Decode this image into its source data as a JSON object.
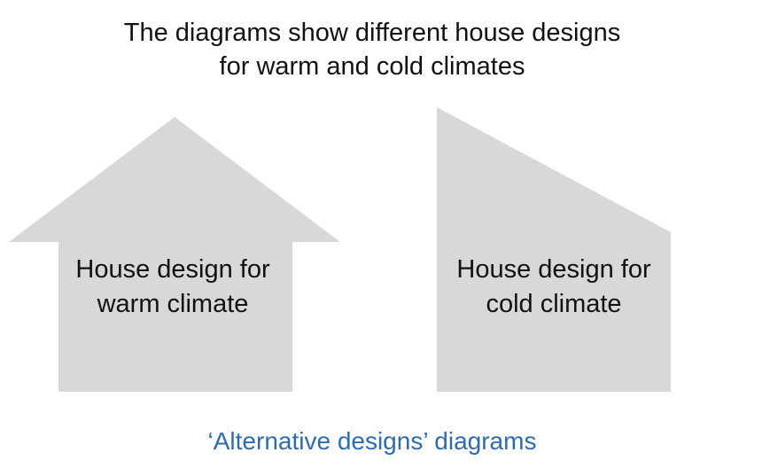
{
  "title": {
    "line1": "The diagrams show different house designs",
    "line2": "for warm and cold climates"
  },
  "houses": [
    {
      "id": "warm",
      "label_line1": "House design for",
      "label_line2": "warm climate"
    },
    {
      "id": "cold",
      "label_line1": "House design for",
      "label_line2": "cold climate"
    }
  ],
  "caption": "‘Alternative designs’ diagrams",
  "colors": {
    "house_fill": "#d8d8d8",
    "text": "#111111",
    "caption": "#2a6db5",
    "background": "#ffffff"
  }
}
